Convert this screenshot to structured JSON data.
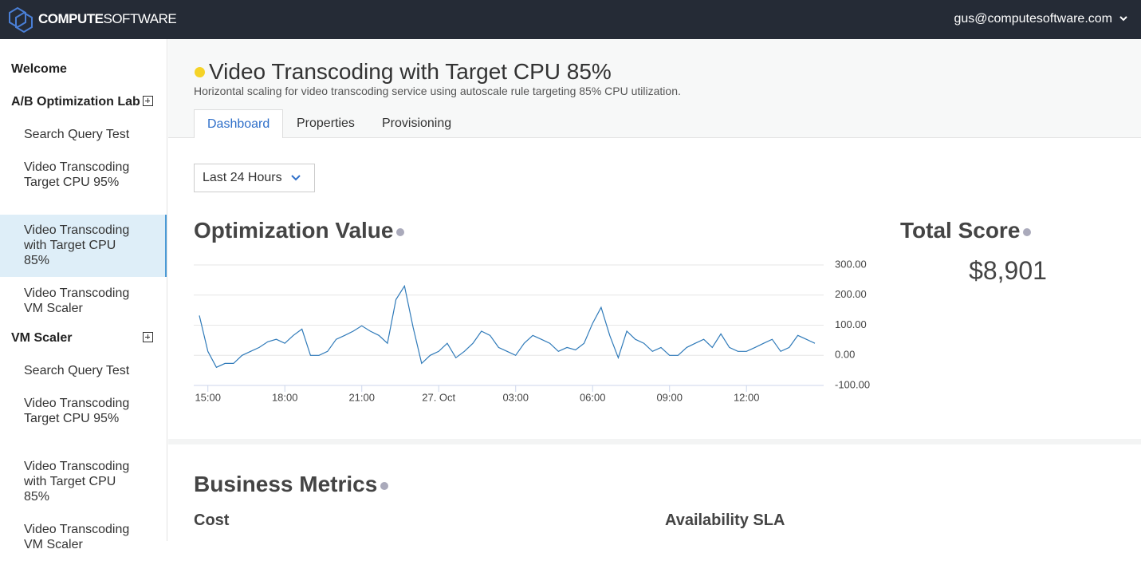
{
  "header": {
    "brand_bold": "COMPUTE",
    "brand_light": "SOFTWARE",
    "user": "gus@computesoftware.com"
  },
  "sidebar": {
    "welcome": "Welcome",
    "groups": [
      {
        "title": "A/B Optimization Lab",
        "items": [
          "Search Query Test",
          "Video Transcoding Target CPU 95%",
          "Video Transcoding with Target CPU 85%",
          "Video Transcoding VM Scaler"
        ]
      },
      {
        "title": "VM Scaler",
        "items": [
          "Search Query Test",
          "Video Transcoding Target CPU 95%",
          "Video Transcoding with Target CPU 85%",
          "Video Transcoding VM Scaler"
        ]
      }
    ]
  },
  "page": {
    "title": "Video Transcoding with Target CPU 85%",
    "subtitle": "Horizontal scaling for video transcoding service using autoscale rule targeting 85% CPU utilization.",
    "tabs": [
      "Dashboard",
      "Properties",
      "Provisioning"
    ],
    "range": "Last 24 Hours",
    "total_score_title": "Total Score",
    "total_score": "$8,901",
    "business_title": "Business Metrics",
    "metric_1": "Cost",
    "metric_2": "Availability SLA"
  },
  "chart_data": {
    "type": "line",
    "title": "Optimization Value",
    "color": "#2f7ab9",
    "grid": true,
    "x": [
      "14:40",
      "15:00",
      "15:20",
      "15:40",
      "16:00",
      "16:20",
      "16:40",
      "17:00",
      "17:20",
      "17:40",
      "18:00",
      "18:20",
      "18:40",
      "19:00",
      "19:20",
      "19:40",
      "20:00",
      "20:20",
      "20:40",
      "21:00",
      "21:20",
      "21:40",
      "22:00",
      "22:20",
      "22:40",
      "23:00",
      "23:20",
      "23:40",
      "00:00",
      "00:20",
      "00:40",
      "01:00",
      "01:20",
      "01:40",
      "02:00",
      "02:20",
      "02:40",
      "03:00",
      "03:20",
      "03:40",
      "04:00",
      "04:20",
      "04:40",
      "05:00",
      "05:20",
      "05:40",
      "06:00",
      "06:20",
      "06:40",
      "07:00",
      "07:20",
      "07:40",
      "08:00",
      "08:20",
      "08:40",
      "09:00",
      "09:20",
      "09:40",
      "10:00",
      "10:20",
      "10:40",
      "11:00",
      "11:20",
      "11:40",
      "12:00",
      "12:20",
      "12:40",
      "13:00",
      "13:20",
      "13:40",
      "14:00",
      "14:20",
      "14:40"
    ],
    "values": [
      132,
      13,
      -40,
      -27,
      -27,
      0,
      13,
      26,
      45,
      53,
      40,
      66,
      87,
      0,
      0,
      13,
      53,
      66,
      80,
      98,
      80,
      66,
      40,
      185,
      230,
      93,
      -27,
      0,
      13,
      40,
      -8,
      13,
      40,
      80,
      66,
      26,
      13,
      0,
      40,
      66,
      53,
      40,
      13,
      26,
      18,
      40,
      106,
      159,
      66,
      -8,
      80,
      53,
      40,
      13,
      26,
      0,
      0,
      26,
      40,
      53,
      26,
      71,
      26,
      13,
      13,
      26,
      40,
      53,
      13,
      26,
      66,
      53,
      40
    ],
    "xticks": [
      "15:00",
      "18:00",
      "21:00",
      {
        "value": "00:00",
        "label": "27. Oct"
      },
      "03:00",
      "06:00",
      "09:00",
      "12:00"
    ],
    "ylim": [
      -100,
      300
    ],
    "yticks": [
      {
        "value": 300,
        "label": "300.00"
      },
      {
        "value": 200,
        "label": "200.00"
      },
      {
        "value": 100,
        "label": "100.00"
      },
      {
        "value": 0,
        "label": "0.00"
      },
      {
        "value": -100,
        "label": "-100.00"
      }
    ]
  }
}
